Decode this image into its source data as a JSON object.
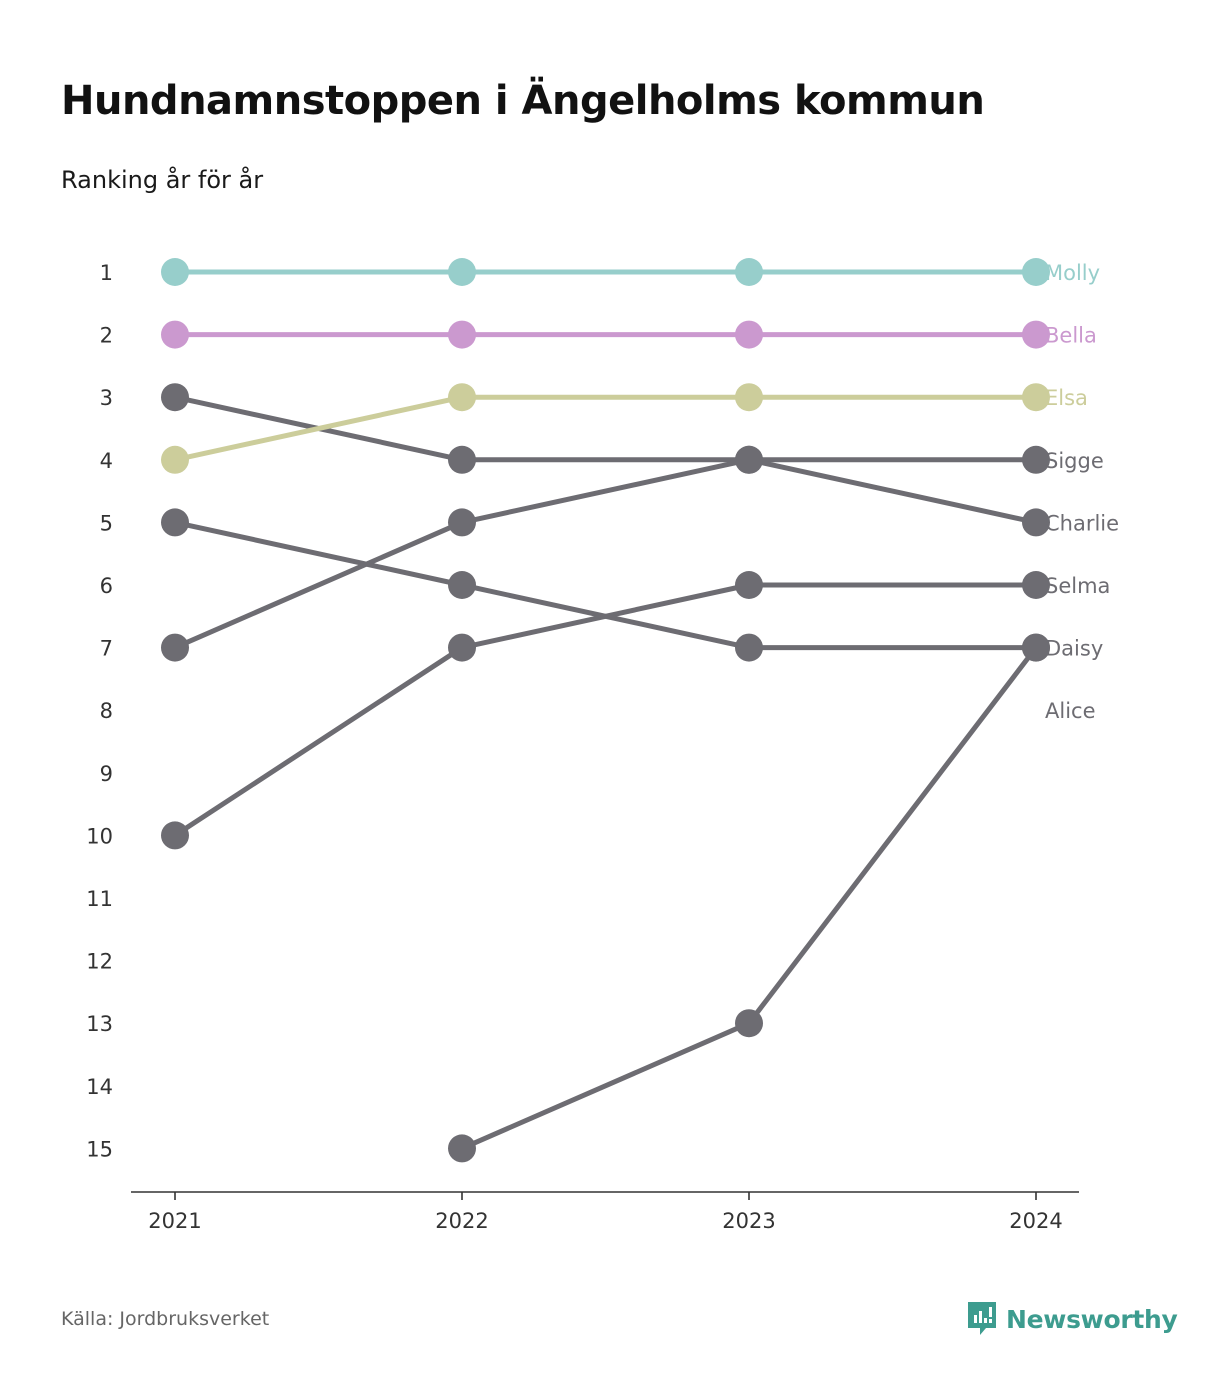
{
  "header": {
    "title": "Hundnamnstoppen i Ängelholms kommun",
    "subtitle": "Ranking år för år"
  },
  "footer": {
    "source": "Källa: Jordbruksverket",
    "brand": "Newsworthy",
    "brand_color": "#3d9c8f",
    "brand_icon": "newsworthy-logo-icon"
  },
  "chart_data": {
    "type": "line",
    "title": "Hundnamnstoppen i Ängelholms kommun",
    "subtitle": "Ranking år för år",
    "x": [
      "2021",
      "2022",
      "2023",
      "2024"
    ],
    "y_ticks": [
      1,
      2,
      3,
      4,
      5,
      6,
      7,
      8,
      9,
      10,
      11,
      12,
      13,
      14,
      15
    ],
    "ylim": [
      1,
      15
    ],
    "y_inverted": true,
    "grid": false,
    "legend": "direct labels at right end",
    "series": [
      {
        "name": "Molly",
        "color": "#97cecb",
        "values": [
          1,
          1,
          1,
          1
        ]
      },
      {
        "name": "Bella",
        "color": "#cb99cf",
        "values": [
          2,
          2,
          2,
          2
        ]
      },
      {
        "name": "Elsa",
        "color": "#cccd9b",
        "values": [
          4,
          3,
          3,
          3
        ]
      },
      {
        "name": "Sigge",
        "color": "#6d6c72",
        "values": [
          3,
          4,
          4,
          4
        ]
      },
      {
        "name": "Charlie",
        "color": "#6d6c72",
        "values": [
          7,
          5,
          4,
          5
        ]
      },
      {
        "name": "Selma",
        "color": "#6d6c72",
        "values": [
          10,
          7,
          6,
          6
        ]
      },
      {
        "name": "Daisy",
        "color": "#6d6c72",
        "values": [
          5,
          6,
          7,
          7
        ]
      },
      {
        "name": "Alice",
        "color": "#6d6c72",
        "values": [
          null,
          15,
          13,
          7
        ]
      }
    ]
  }
}
